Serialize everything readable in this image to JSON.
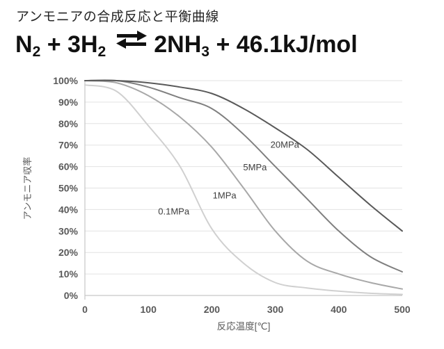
{
  "page": {
    "title": "アンモニアの合成反応と平衡曲線"
  },
  "equation": {
    "n2": "N",
    "n2_sub": "2",
    "plus1": " + ",
    "h2": "3H",
    "h2_sub": "2",
    "arrow_symbol": "⇄",
    "nh3": "2NH",
    "nh3_sub": "3",
    "plus2": " + ",
    "enthalpy": "46.1kJ/mol"
  },
  "chart_data": {
    "type": "line",
    "title": "アンモニアの合成反応と平衡曲線",
    "xlabel": "反応温度[℃]",
    "ylabel": "アンモニア収率",
    "xlim": [
      0,
      500
    ],
    "ylim": [
      0,
      100
    ],
    "grid": true,
    "legend": "inline-curve-labels",
    "x": [
      0,
      50,
      100,
      150,
      200,
      250,
      300,
      350,
      400,
      450,
      500
    ],
    "x_ticks": [
      0,
      100,
      200,
      300,
      400,
      500
    ],
    "x_tick_labels": [
      "0",
      "100",
      "200",
      "300",
      "400",
      "500"
    ],
    "y_ticks": [
      0,
      10,
      20,
      30,
      40,
      50,
      60,
      70,
      80,
      90,
      100
    ],
    "y_tick_labels": [
      "0%",
      "10%",
      "20%",
      "30%",
      "40%",
      "50%",
      "60%",
      "70%",
      "80%",
      "90%",
      "100%"
    ],
    "series": [
      {
        "name": "0.1MPa",
        "color": "#d0d0d0",
        "values": [
          98,
          95,
          79,
          60,
          31,
          15,
          6,
          3.5,
          2,
          1,
          0.5
        ],
        "label": {
          "text": "0.1MPa",
          "x": 140,
          "y": 39
        }
      },
      {
        "name": "1MPa",
        "color": "#a8a8a8",
        "values": [
          100,
          99,
          93,
          83,
          69,
          50,
          30,
          16,
          10,
          6,
          3
        ],
        "label": {
          "text": "1MPa",
          "x": 220,
          "y": 46.5
        }
      },
      {
        "name": "5MPa",
        "color": "#7f7f7f",
        "values": [
          100,
          100,
          97,
          92,
          87,
          75,
          60,
          45,
          30,
          18,
          11
        ],
        "label": {
          "text": "5MPa",
          "x": 268,
          "y": 59.5
        }
      },
      {
        "name": "20MPa",
        "color": "#595959",
        "values": [
          100,
          100,
          99,
          97,
          94,
          87,
          78,
          68,
          55,
          42,
          30
        ],
        "label": {
          "text": "20MPa",
          "x": 315,
          "y": 70
        }
      }
    ],
    "style": {
      "grid_color": "#e2e2e2",
      "axis_color": "#c6c6c6",
      "tick_text_color": "#595959",
      "label_text_color": "#404040"
    }
  }
}
